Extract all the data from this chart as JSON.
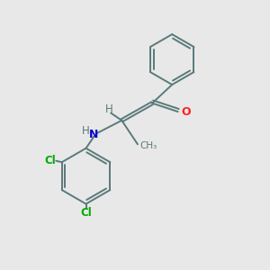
{
  "background_color": "#e8e8e8",
  "bond_color": "#5a7a7a",
  "atom_colors": {
    "O": "#ff2020",
    "N": "#0000cc",
    "Cl": "#00aa00",
    "H": "#5a7a7a",
    "C": "#5a7a7a"
  },
  "bond_lw": 1.4,
  "figsize": [
    3.0,
    3.0
  ],
  "dpi": 100
}
